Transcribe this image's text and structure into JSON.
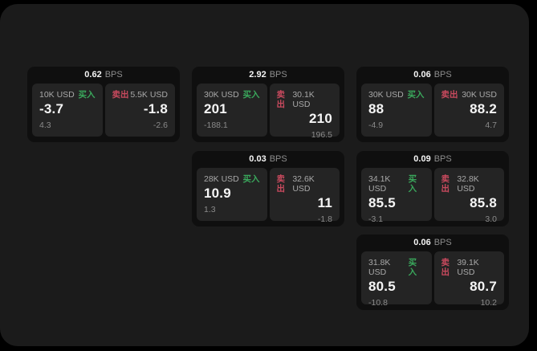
{
  "labels": {
    "bps_unit": "BPS",
    "buy": "买入",
    "sell": "卖出"
  },
  "colors": {
    "page_bg": "#000000",
    "window_bg": "#1b1b1b",
    "card_bg": "#0f0f0f",
    "tile_bg": "#242424",
    "buy_green": "#3aa85c",
    "sell_red": "#c94a5e",
    "value_white": "#f5f5f5",
    "muted_gray": "#8d8d8d"
  },
  "cards": [
    {
      "bps": "0.62",
      "buy": {
        "amount": "10K USD",
        "value": "-3.7",
        "sub": "4.3"
      },
      "sell": {
        "amount": "5.5K USD",
        "value": "-1.8",
        "sub": "-2.6"
      }
    },
    {
      "bps": "2.92",
      "buy": {
        "amount": "30K USD",
        "value": "201",
        "sub": "-188.1"
      },
      "sell": {
        "amount": "30.1K USD",
        "value": "210",
        "sub": "196.5"
      }
    },
    {
      "bps": "0.06",
      "buy": {
        "amount": "30K USD",
        "value": "88",
        "sub": "-4.9"
      },
      "sell": {
        "amount": "30K USD",
        "value": "88.2",
        "sub": "4.7"
      }
    },
    {
      "bps": "0.03",
      "buy": {
        "amount": "28K USD",
        "value": "10.9",
        "sub": "1.3"
      },
      "sell": {
        "amount": "32.6K USD",
        "value": "11",
        "sub": "-1.8"
      }
    },
    {
      "bps": "0.09",
      "buy": {
        "amount": "34.1K USD",
        "value": "85.5",
        "sub": "-3.1"
      },
      "sell": {
        "amount": "32.8K USD",
        "value": "85.8",
        "sub": "3.0"
      }
    },
    {
      "bps": "0.06",
      "buy": {
        "amount": "31.8K USD",
        "value": "80.5",
        "sub": "-10.8"
      },
      "sell": {
        "amount": "39.1K USD",
        "value": "80.7",
        "sub": "10.2"
      }
    }
  ]
}
